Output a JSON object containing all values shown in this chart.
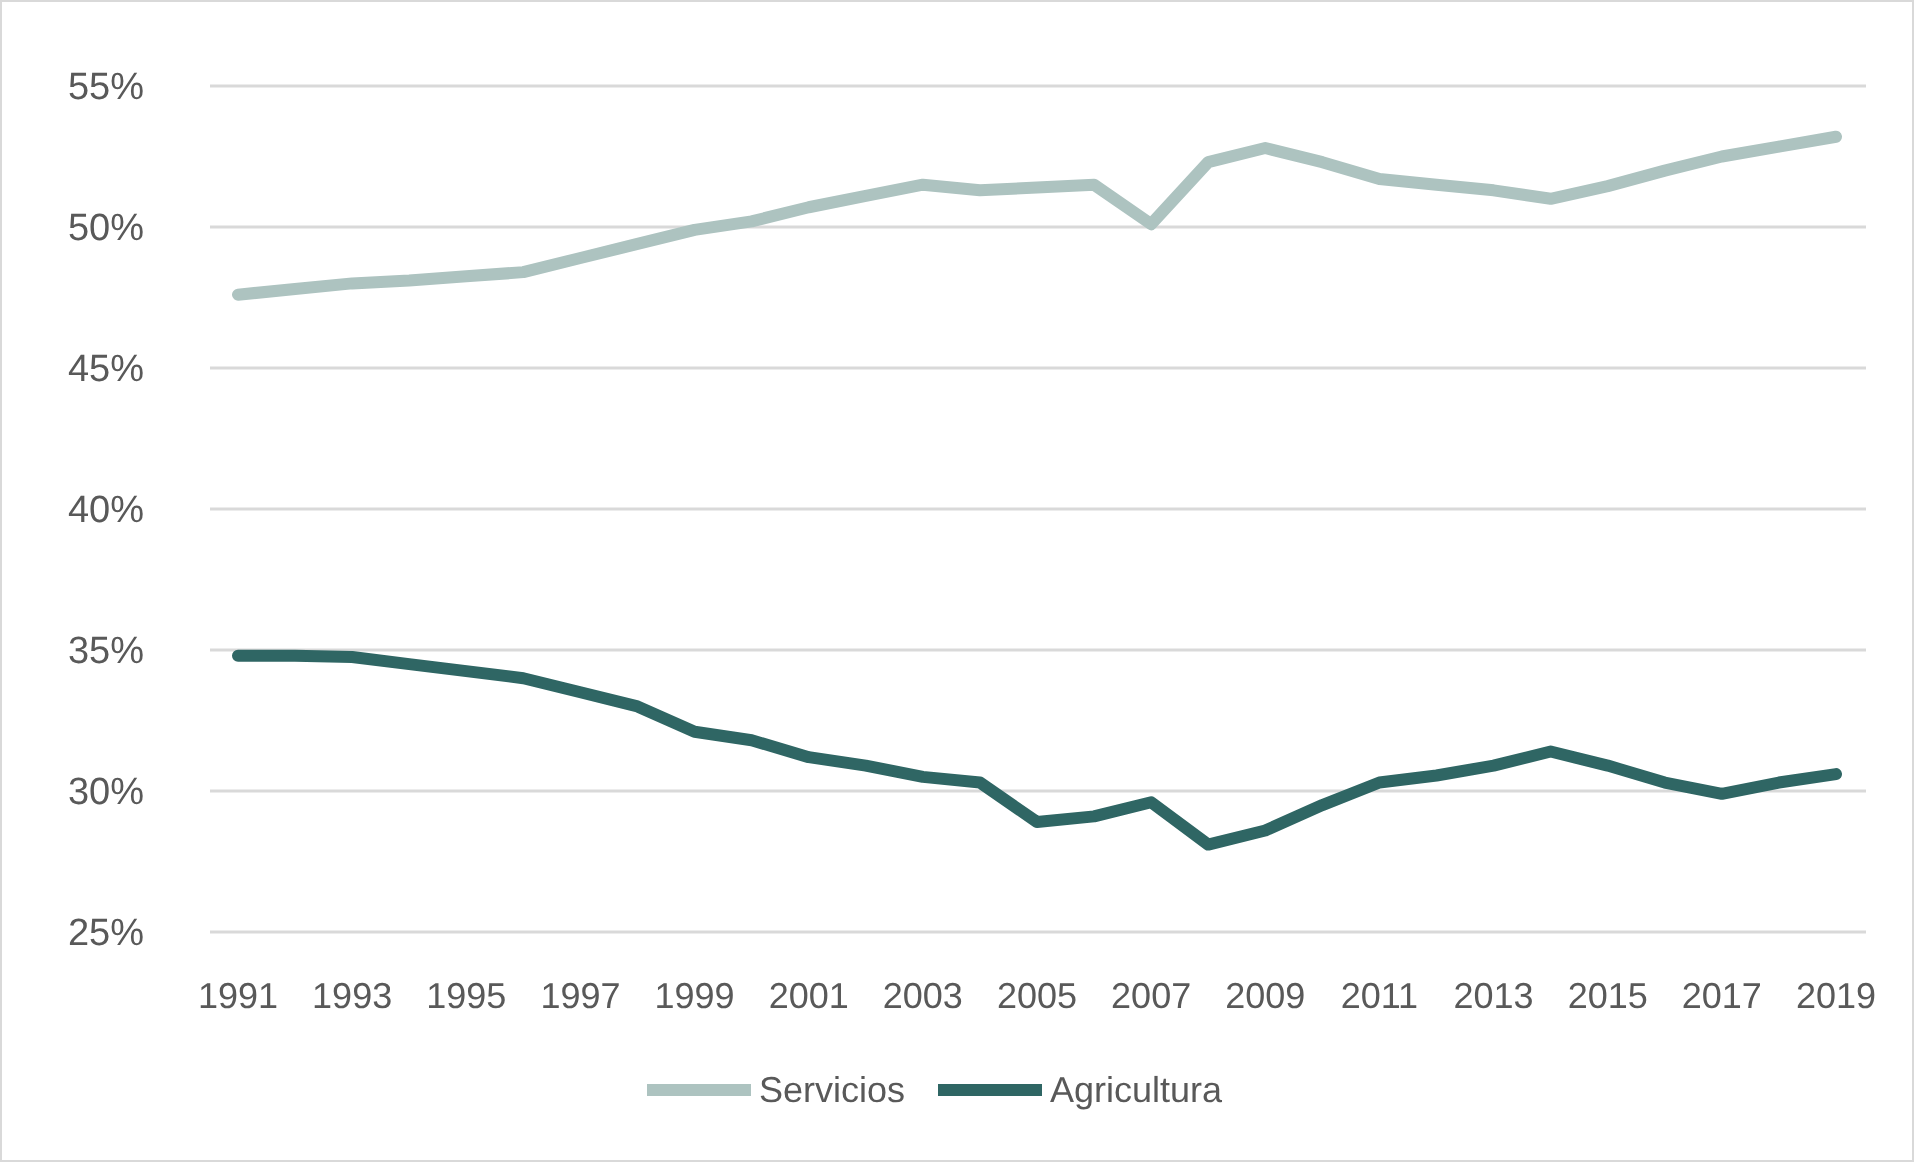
{
  "chart_data": {
    "type": "line",
    "categories": [
      "1991",
      null,
      "1993",
      null,
      "1995",
      null,
      "1997",
      null,
      "1999",
      null,
      "2001",
      null,
      "2003",
      null,
      "2005",
      null,
      "2007",
      null,
      "2009",
      null,
      "2011",
      null,
      "2013",
      null,
      "2015",
      null,
      "2017",
      null,
      "2019"
    ],
    "series": [
      {
        "name": "Servicios",
        "color": "#adc3c0",
        "values": [
          47.6,
          47.8,
          48.0,
          48.1,
          48.25,
          48.4,
          48.9,
          49.4,
          49.9,
          50.2,
          50.7,
          51.1,
          51.5,
          51.3,
          51.4,
          51.5,
          50.1,
          52.3,
          52.8,
          52.3,
          51.7,
          51.5,
          51.3,
          51.0,
          51.45,
          52.0,
          52.5,
          52.85,
          53.2
        ]
      },
      {
        "name": "Agricultura",
        "color": "#2f6664",
        "values": [
          34.8,
          34.8,
          34.75,
          34.5,
          34.25,
          34.0,
          33.5,
          33.0,
          32.1,
          31.8,
          31.2,
          30.9,
          30.5,
          30.3,
          28.9,
          29.1,
          29.6,
          28.1,
          28.6,
          29.5,
          30.3,
          30.55,
          30.9,
          31.4,
          30.9,
          30.3,
          29.9,
          30.3,
          30.6
        ]
      }
    ],
    "ylim": [
      25,
      55
    ],
    "yticks": [
      {
        "value": 25,
        "label": "25%"
      },
      {
        "value": 30,
        "label": "30%"
      },
      {
        "value": 35,
        "label": "35%"
      },
      {
        "value": 40,
        "label": "40%"
      },
      {
        "value": 45,
        "label": "45%"
      },
      {
        "value": 50,
        "label": "50%"
      },
      {
        "value": 55,
        "label": "55%"
      }
    ],
    "grid": "y",
    "legend": "bottom",
    "marker": "none",
    "line_style": "solid"
  }
}
